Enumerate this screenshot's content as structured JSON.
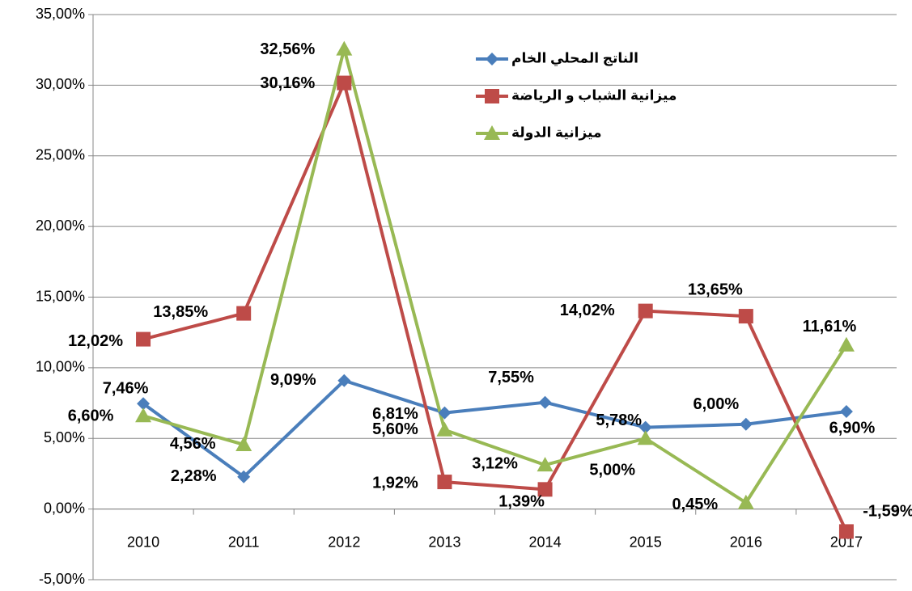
{
  "chart_data": {
    "type": "line",
    "categories": [
      "2010",
      "2011",
      "2012",
      "2013",
      "2014",
      "2015",
      "2016",
      "2017"
    ],
    "series": [
      {
        "name": "الناتج المحلي الخام",
        "color": "#4a7ebb",
        "marker": "diamond",
        "values": [
          7.46,
          2.28,
          9.09,
          6.81,
          7.55,
          5.78,
          6.0,
          6.9
        ],
        "value_labels": [
          "7,46%",
          "2,28%",
          "9,09%",
          "6,81%",
          "7,55%",
          "5,78%",
          "6,00%",
          "6,90%"
        ]
      },
      {
        "name": "ميزانية الشباب و الرياضة",
        "color": "#be4b48",
        "marker": "square",
        "values": [
          12.02,
          13.85,
          30.16,
          1.92,
          1.39,
          14.02,
          13.65,
          -1.59
        ],
        "value_labels": [
          "12,02%",
          "13,85%",
          "30,16%",
          "1,92%",
          "1,39%",
          "14,02%",
          "13,65%",
          "-1,59%"
        ]
      },
      {
        "name": "ميزانية الدولة",
        "color": "#98b954",
        "marker": "triangle",
        "values": [
          6.6,
          4.56,
          32.56,
          5.6,
          3.12,
          5.0,
          0.45,
          11.61
        ],
        "value_labels": [
          "6,60%",
          "4,56%",
          "32,56%",
          "5,60%",
          "3,12%",
          "5,00%",
          "0,45%",
          "11,61%"
        ]
      }
    ],
    "ylim": [
      -5,
      35
    ],
    "yticks": [
      {
        "value": -5,
        "label": "-5,00%"
      },
      {
        "value": 0,
        "label": "0,00%"
      },
      {
        "value": 5,
        "label": "5,00%"
      },
      {
        "value": 10,
        "label": "10,00%"
      },
      {
        "value": 15,
        "label": "15,00%"
      },
      {
        "value": 20,
        "label": "20,00%"
      },
      {
        "value": 25,
        "label": "25,00%"
      },
      {
        "value": 30,
        "label": "30,00%"
      },
      {
        "value": 35,
        "label": "35,00%"
      }
    ],
    "grid": true
  }
}
